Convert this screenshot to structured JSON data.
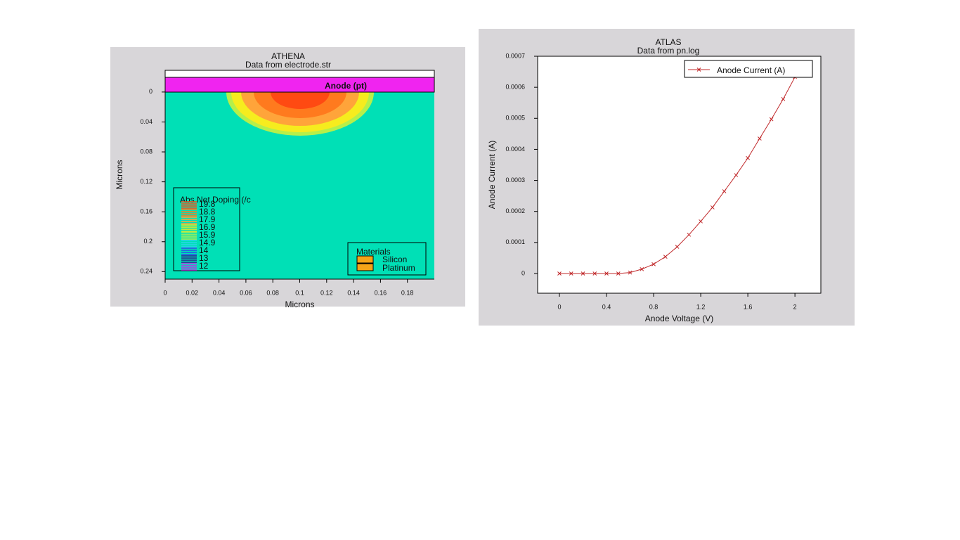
{
  "chart_data": [
    {
      "type": "contour",
      "title": "ATHENA",
      "subtitle": "Data from electrode.str",
      "xlabel": "Microns",
      "ylabel": "Microns",
      "xlim": [
        0,
        0.2
      ],
      "xticks": [
        0,
        0.02,
        0.04,
        0.06,
        0.08,
        0.1,
        0.12,
        0.14,
        0.16,
        0.18
      ],
      "ylim": [
        -0.029,
        0.25
      ],
      "y_reversed": true,
      "yticks": [
        0,
        0.04,
        0.08,
        0.12,
        0.16,
        0.2,
        0.24
      ],
      "annotation": "Anode (pt)",
      "legend_title": "Abs Net Doping (/c",
      "levels": [
        {
          "value": 19.8,
          "color": "#ff4a12"
        },
        {
          "value": 18.8,
          "color": "#ff7a1e"
        },
        {
          "value": 17.9,
          "color": "#ffa43a"
        },
        {
          "value": 16.9,
          "color": "#f6ec1e"
        },
        {
          "value": 15.9,
          "color": "#b6ef4a"
        },
        {
          "value": 14.9,
          "color": "#2ad6e8"
        },
        {
          "value": 14,
          "color": "#2a4ee8"
        },
        {
          "value": 13,
          "color": "#2a1a8a"
        },
        {
          "value": 12,
          "color": "#c02ae8"
        }
      ],
      "materials_title": "Materials",
      "materials": [
        {
          "name": "Silicon",
          "color": "#f5a418"
        },
        {
          "name": "Platinum",
          "color": "#f5a418"
        }
      ]
    },
    {
      "type": "line",
      "title": "ATLAS",
      "subtitle": "Data from pn.log",
      "xlabel": "Anode Voltage (V)",
      "ylabel": "Anode Current (A)",
      "xlim": [
        -0.185,
        2.22
      ],
      "xticks": [
        0,
        0.4,
        0.8,
        1.2,
        1.6,
        2
      ],
      "ylim": [
        -6.35e-05,
        0.0007
      ],
      "yticks": [
        0,
        0.0001,
        0.0002,
        0.0003,
        0.0004,
        0.0005,
        0.0006,
        0.0007
      ],
      "x": [
        0,
        0.1,
        0.2,
        0.3,
        0.4,
        0.5,
        0.6,
        0.7,
        0.8,
        0.9,
        1.0,
        1.1,
        1.2,
        1.3,
        1.4,
        1.5,
        1.6,
        1.7,
        1.8,
        1.9,
        2.0
      ],
      "series": [
        {
          "name": "Anode Current (A)",
          "color": "#c0282a",
          "values": [
            0,
            0,
            0,
            0,
            0,
            0,
            3e-06,
            1.4e-05,
            3e-05,
            5.4e-05,
            8.6e-05,
            0.000125,
            0.000168,
            0.000213,
            0.000265,
            0.000317,
            0.000372,
            0.000435,
            0.000497,
            0.000562,
            0.000633
          ]
        }
      ]
    }
  ]
}
